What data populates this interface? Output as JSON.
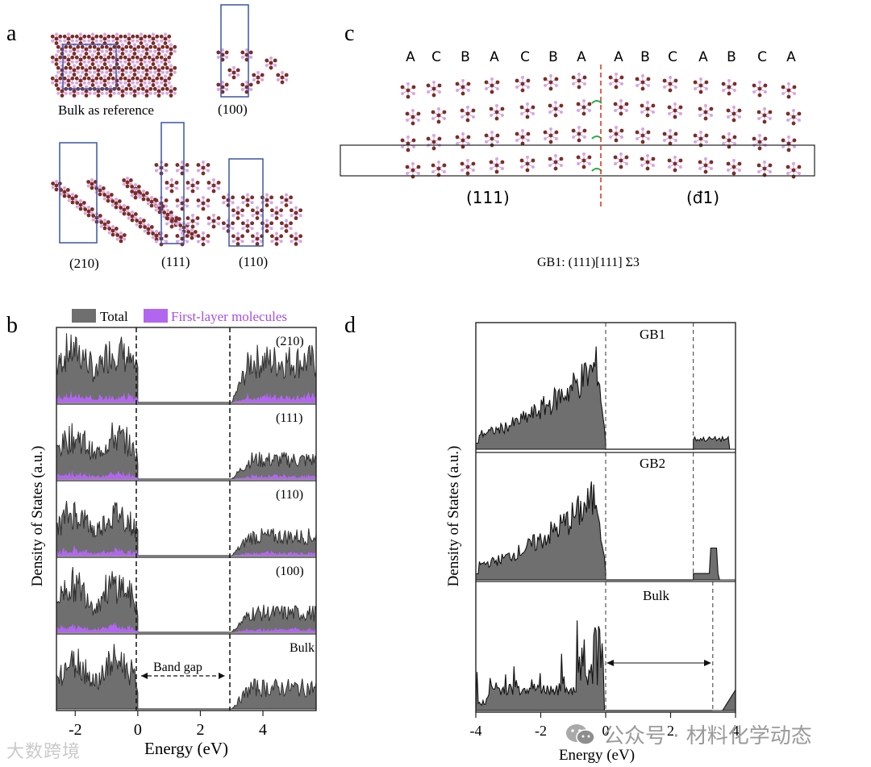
{
  "panels": {
    "a": {
      "label": "a",
      "captions": [
        "Bulk as reference",
        "(100)",
        "(210)",
        "(111)",
        "(110)"
      ]
    },
    "b": {
      "label": "b",
      "legend": {
        "total": "Total",
        "first_layer": "First-layer molecules"
      },
      "ylabel": "Density of States (a.u.)",
      "xlabel": "Energy (eV)",
      "xticks": [
        "-2",
        "0",
        "2",
        "4"
      ],
      "subpanels": [
        "(210)",
        "(111)",
        "(110)",
        "(100)",
        "Bulk"
      ],
      "band_gap_label": "Band gap"
    },
    "c": {
      "label": "c",
      "stacking": [
        "A",
        "C",
        "B",
        "A",
        "C",
        "B",
        "A",
        "A",
        "B",
        "C",
        "A",
        "B",
        "C",
        "A"
      ],
      "left_plane": "(111)",
      "right_plane": "(đ1)",
      "caption": "GB1: (111)[111] Σ3"
    },
    "d": {
      "label": "d",
      "ylabel": "Density of States (a.u.)",
      "xlabel": "Energy (eV)",
      "xticks": [
        "-4",
        "-2",
        "0",
        "2",
        "4"
      ],
      "subpanels": [
        "GB1",
        "GB2",
        "Bulk"
      ]
    }
  },
  "chart_data": [
    {
      "type": "area",
      "title": "b",
      "xlabel": "Energy (eV)",
      "ylabel": "Density of States (a.u.)",
      "xlim": [
        -2.6,
        5.7
      ],
      "series": [
        {
          "name": "Total",
          "color": "#6f6f6f"
        },
        {
          "name": "First-layer molecules",
          "color": "#b266f0"
        }
      ],
      "panels": [
        "(210)",
        "(111)",
        "(110)",
        "(100)",
        "Bulk"
      ],
      "vb_edge": 0,
      "cb_edge": 3.0,
      "annotation": "Band gap"
    },
    {
      "type": "area",
      "title": "d",
      "xlabel": "Energy (eV)",
      "ylabel": "Density of States (a.u.)",
      "xlim": [
        -4,
        4
      ],
      "panels": [
        "GB1",
        "GB2",
        "Bulk"
      ],
      "vb_edge": 0,
      "cb_edges": [
        2.7,
        2.7,
        3.3
      ]
    }
  ],
  "watermarks": {
    "left": "大数跨境",
    "right": "公众号 · 材料化学动态"
  },
  "colors": {
    "dos_fill": "#6f6f6f",
    "first_layer_fill": "#b266f0",
    "gb_line": "#e0392b",
    "box": "#3b55a6",
    "atom_brown": "#7b2d26",
    "atom_pink": "#d8a6e0"
  }
}
